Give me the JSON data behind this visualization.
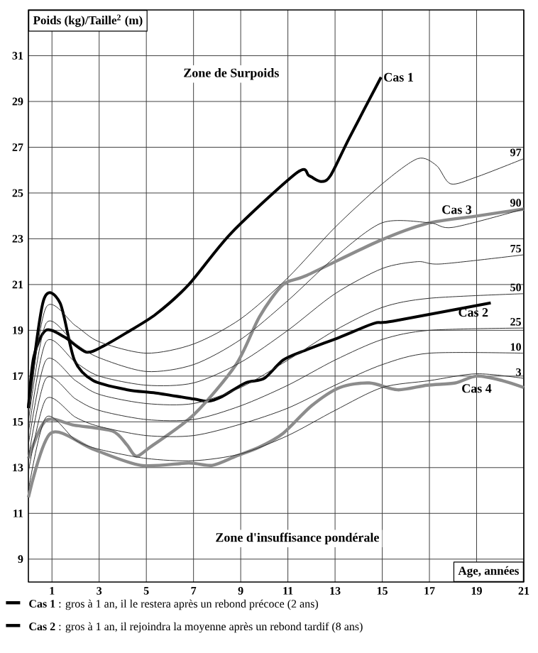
{
  "chart_data": {
    "type": "line",
    "xlabel": "Age, années",
    "ylabel": "Poids (kg)/Taille$^{2}$ (m)",
    "xlim": [
      0,
      21
    ],
    "ylim": [
      8,
      33
    ],
    "xticks": [
      1,
      3,
      5,
      7,
      9,
      11,
      13,
      15,
      17,
      19,
      21
    ],
    "yticks": [
      9,
      11,
      13,
      15,
      17,
      19,
      21,
      23,
      25,
      27,
      29,
      31
    ],
    "grid": true,
    "marker": "none",
    "line_style": "solid",
    "annotations": [
      "Zone de Surpoids",
      "Zone d'insuffisance pondérale",
      "**Cas 1** : gros à 1 an, il le restera après un rebond précoce (2 ans)",
      "**Cas 2** : gros à 1 an, il rejoindra la moyenne après un rebond tardif (8 ans)"
    ],
    "series": [
      {
        "name": "Cas 1",
        "color": "#000000",
        "x": [
          0,
          0.23,
          0.74,
          1.54,
          2.45,
          3.16,
          4.17,
          5.4,
          6.8,
          8.6,
          11.4,
          11.9,
          12.4,
          12.8,
          13.6,
          14.95
        ],
        "values": [
          15.6,
          17.85,
          19.0,
          18.7,
          18.05,
          18.3,
          18.9,
          19.7,
          21.0,
          23.25,
          25.9,
          25.75,
          25.5,
          25.75,
          27.4,
          30.06
        ]
      },
      {
        "name": "Cas 2",
        "color": "#000000",
        "x": [
          0,
          0.64,
          1.34,
          1.95,
          2.75,
          4.2,
          5.4,
          7.0,
          7.6,
          8.2,
          9.2,
          10.0,
          10.8,
          11.8,
          13.2,
          14.65,
          15.45,
          19.6
        ],
        "values": [
          15.6,
          20.3,
          20.2,
          17.7,
          16.8,
          16.4,
          16.26,
          16.0,
          15.9,
          16.1,
          16.7,
          16.9,
          17.7,
          18.15,
          18.7,
          19.3,
          19.4,
          20.2
        ]
      },
      {
        "name": "Cas 3",
        "color": "#8c8c8c",
        "x": [
          0,
          0.74,
          1.95,
          3.56,
          4.17,
          4.57,
          5.17,
          7.0,
          8.8,
          9.8,
          10.8,
          11.8,
          14.85,
          16.9,
          18.9,
          21
        ],
        "values": [
          13.4,
          15.06,
          14.85,
          14.6,
          14.0,
          13.5,
          13.9,
          15.3,
          17.5,
          19.6,
          21.0,
          21.4,
          22.9,
          23.67,
          23.98,
          24.3
        ]
      },
      {
        "name": "Cas 4",
        "color": "#8c8c8c",
        "x": [
          0,
          0.94,
          2.75,
          4.77,
          6.8,
          7.8,
          8.8,
          9.8,
          10.8,
          12.0,
          13.2,
          14.45,
          15.65,
          16.9,
          18.1,
          19.0,
          20.1,
          21.0
        ],
        "values": [
          11.7,
          14.5,
          13.8,
          13.1,
          13.2,
          13.1,
          13.5,
          13.9,
          14.5,
          15.7,
          16.5,
          16.7,
          16.4,
          16.6,
          16.7,
          17.0,
          16.8,
          16.5
        ]
      },
      {
        "name": "97",
        "color": "#303030",
        "x": [
          0,
          0.75,
          2,
          3,
          5,
          7,
          9,
          11,
          13,
          15,
          16.5,
          17.3,
          17.9,
          19,
          21
        ],
        "values": [
          15.5,
          20.0,
          19.2,
          18.5,
          18.0,
          18.4,
          19.5,
          21.3,
          23.5,
          25.4,
          26.5,
          26.2,
          25.4,
          25.7,
          26.5
        ]
      },
      {
        "name": "90",
        "color": "#303030",
        "x": [
          0,
          0.75,
          2,
          3,
          5,
          7,
          9,
          11,
          13,
          15,
          17,
          18,
          21
        ],
        "values": [
          15.0,
          19.3,
          18.4,
          17.8,
          17.2,
          17.5,
          18.6,
          20.3,
          22.2,
          23.7,
          23.7,
          23.5,
          24.3
        ]
      },
      {
        "name": "75",
        "color": "#303030",
        "x": [
          0,
          0.75,
          2,
          3,
          5,
          7,
          9,
          11,
          13,
          15,
          16.5,
          17.5,
          21
        ],
        "values": [
          14.5,
          18.5,
          17.6,
          17.0,
          16.6,
          16.7,
          17.6,
          19.0,
          20.6,
          21.7,
          22.0,
          21.9,
          22.3
        ]
      },
      {
        "name": "50",
        "color": "#303030",
        "x": [
          0,
          0.75,
          2,
          3,
          5,
          7,
          9,
          11,
          13,
          15,
          17,
          21
        ],
        "values": [
          14.0,
          17.7,
          16.8,
          16.2,
          15.8,
          15.8,
          16.5,
          17.7,
          19.0,
          20.0,
          20.4,
          20.6
        ]
      },
      {
        "name": "25",
        "color": "#303030",
        "x": [
          0,
          0.75,
          2,
          3,
          5,
          7,
          9,
          11,
          13,
          15,
          17,
          21
        ],
        "values": [
          13.4,
          16.9,
          16.0,
          15.5,
          15.1,
          15.1,
          15.7,
          16.6,
          17.7,
          18.6,
          19.0,
          19.1
        ]
      },
      {
        "name": "10",
        "color": "#303030",
        "x": [
          0,
          0.75,
          2,
          3,
          5,
          7,
          9,
          11,
          13,
          15,
          17,
          21
        ],
        "values": [
          12.8,
          16.0,
          15.2,
          14.8,
          14.4,
          14.4,
          14.9,
          15.6,
          16.6,
          17.5,
          18.0,
          18.0
        ]
      },
      {
        "name": "3",
        "color": "#303030",
        "x": [
          0,
          0.75,
          2,
          3,
          5,
          7,
          9,
          11,
          13,
          15,
          17,
          19,
          21
        ],
        "values": [
          12.0,
          15.2,
          14.2,
          13.8,
          13.4,
          13.3,
          13.6,
          14.4,
          15.5,
          16.5,
          16.8,
          17.1,
          16.9
        ]
      }
    ]
  }
}
